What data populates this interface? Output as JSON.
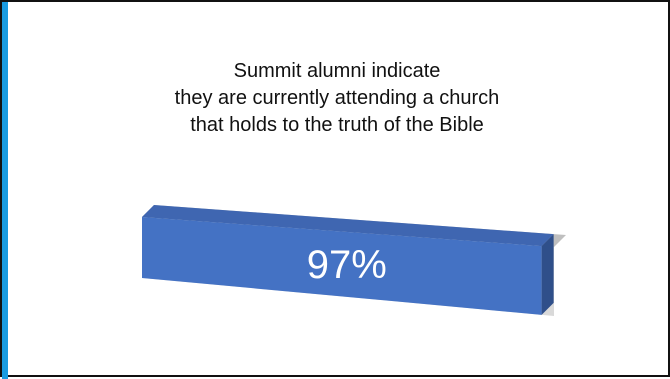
{
  "slide": {
    "title_lines": [
      "Summit alumni indicate",
      "they are currently attending a church",
      "that holds to the truth of the Bible"
    ]
  },
  "colors": {
    "bar_front": "#4472c4",
    "bar_top": "#3f66b1",
    "bar_end": "#2f4f8a",
    "track_front": "#d9d9d9",
    "track_top": "#bfbfbf",
    "label": "#ffffff",
    "accent": "#1a9be0"
  },
  "chart_data": {
    "type": "bar",
    "orientation": "horizontal",
    "style": "3d",
    "categories": [
      ""
    ],
    "values": [
      97
    ],
    "xlim": [
      0,
      100
    ],
    "data_labels": [
      "97%"
    ],
    "grid": false,
    "legend": "none"
  }
}
